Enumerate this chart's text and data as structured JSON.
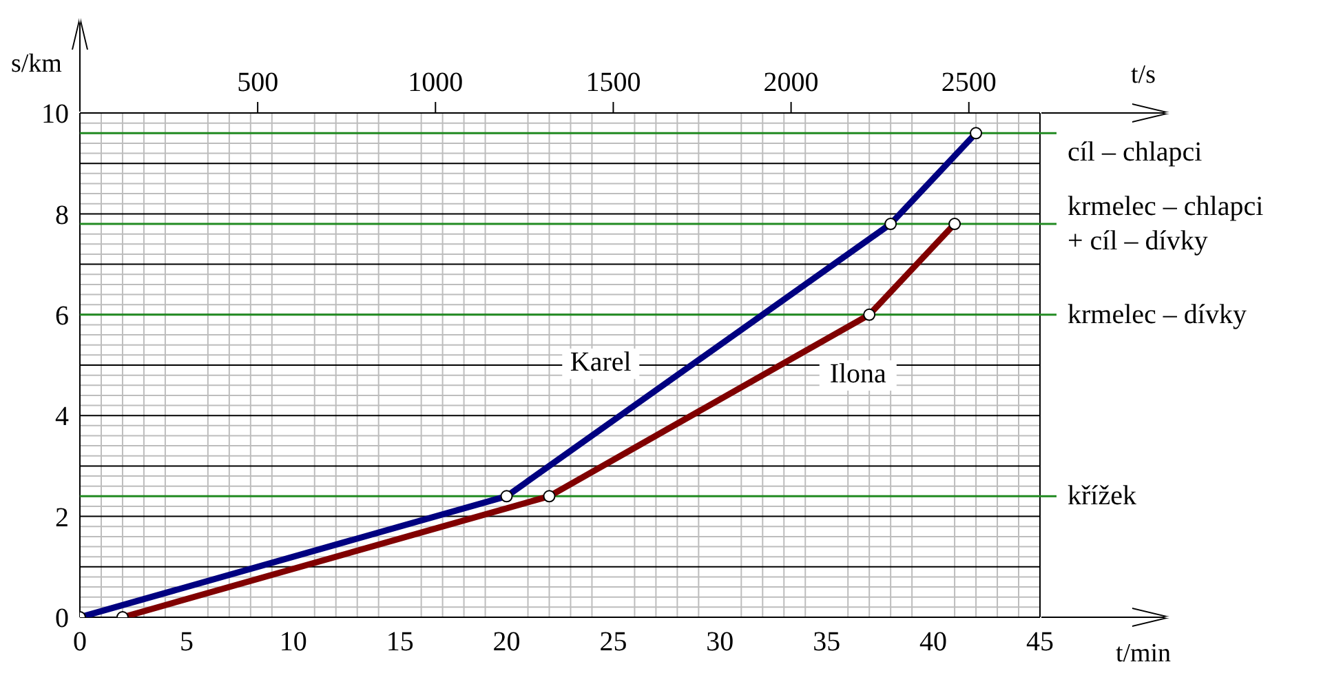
{
  "chart_data": {
    "type": "line",
    "xlabel": "t/min",
    "ylabel": "s/km",
    "x2label": "t/s",
    "xlim": [
      0,
      45
    ],
    "xticks": [
      0,
      5,
      10,
      15,
      20,
      25,
      30,
      35,
      40,
      45
    ],
    "x2lim": [
      0,
      2700
    ],
    "x2ticks": [
      500,
      1000,
      1500,
      2000,
      2500
    ],
    "ylim": [
      0,
      10
    ],
    "yticks": [
      0,
      {
        "value": 1,
        "label": null
      },
      2,
      {
        "value": 3,
        "label": null
      },
      4,
      {
        "value": 5,
        "label": null
      },
      6,
      {
        "value": 7,
        "label": null
      },
      8,
      {
        "value": 9,
        "label": null
      },
      10
    ],
    "grid": true,
    "marker": "circle",
    "line_style": "solid",
    "legend": false,
    "series": [
      {
        "name": "Karel",
        "color": "#000080",
        "x": [
          0,
          20,
          38,
          42
        ],
        "values": [
          0,
          2.4,
          7.8,
          9.6
        ]
      },
      {
        "name": "Ilona",
        "color": "#800000",
        "x": [
          2,
          22,
          37,
          41
        ],
        "values": [
          0,
          2.4,
          6,
          7.8
        ]
      }
    ],
    "ref_lines": [
      {
        "axis": "y",
        "value": 9.6,
        "label": "cíl – chlapci",
        "color": "#228b22"
      },
      {
        "axis": "y",
        "value": 7.8,
        "label": "krmelec – chlapci\n+ cíl – dívky",
        "color": "#228b22"
      },
      {
        "axis": "y",
        "value": 6,
        "label": "krmelec – dívky",
        "color": "#228b22"
      },
      {
        "axis": "y",
        "value": 2.4,
        "label": "křížek",
        "color": "#228b22"
      }
    ]
  }
}
